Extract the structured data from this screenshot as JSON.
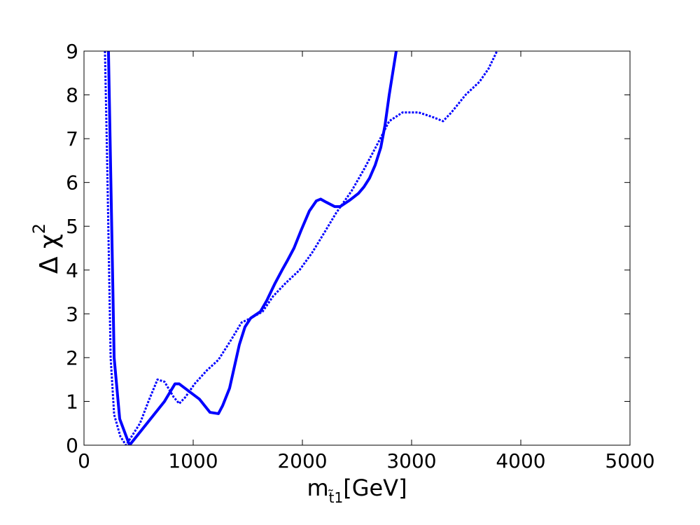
{
  "chart_data": {
    "type": "line",
    "xlabel": [
      "m",
      "t̃1",
      "[GeV]"
    ],
    "ylabel": [
      "Δ χ",
      "2"
    ],
    "xlim": [
      0,
      5000
    ],
    "xticks": [
      0,
      1000,
      2000,
      3000,
      4000,
      5000
    ],
    "ylim": [
      0,
      9
    ],
    "yticks": [
      0,
      1,
      2,
      3,
      4,
      5,
      6,
      7,
      8,
      9
    ],
    "series": [
      {
        "color": "#0000ff",
        "linestyle": "solid",
        "x": [
          224,
          276,
          327,
          417,
          577,
          737,
          833,
          872,
          1058,
          1154,
          1231,
          1269,
          1333,
          1423,
          1474,
          1526,
          1615,
          1673,
          1750,
          1814,
          1859,
          1923,
          1987,
          2064,
          2128,
          2167,
          2218,
          2295,
          2346,
          2436,
          2513,
          2564,
          2615,
          2667,
          2718,
          2756,
          2795,
          2859
        ],
        "values": [
          9,
          2,
          0.6,
          0,
          0.5,
          1.0,
          1.4,
          1.4,
          1.05,
          0.75,
          0.72,
          0.9,
          1.3,
          2.3,
          2.7,
          2.9,
          3.05,
          3.3,
          3.7,
          4.0,
          4.2,
          4.5,
          4.9,
          5.35,
          5.58,
          5.62,
          5.55,
          5.45,
          5.45,
          5.6,
          5.75,
          5.9,
          6.1,
          6.4,
          6.8,
          7.3,
          8.0,
          9.0
        ]
      },
      {
        "color": "#0000ff",
        "linestyle": "dotted",
        "x": [
          192,
          212,
          244,
          276,
          333,
          385,
          513,
          590,
          673,
          737,
          821,
          872,
          929,
          1013,
          1122,
          1231,
          1346,
          1442,
          1526,
          1635,
          1731,
          1846,
          1974,
          2090,
          2212,
          2308,
          2449,
          2564,
          2692,
          2795,
          2917,
          3064,
          3186,
          3288,
          3365,
          3494,
          3622,
          3705,
          3782
        ],
        "values": [
          9,
          6.5,
          2,
          0.7,
          0.2,
          0,
          0.5,
          1.0,
          1.5,
          1.45,
          1.1,
          0.95,
          1.1,
          1.4,
          1.7,
          1.95,
          2.4,
          2.8,
          2.9,
          3.05,
          3.4,
          3.7,
          4.0,
          4.4,
          4.9,
          5.3,
          5.8,
          6.3,
          6.9,
          7.4,
          7.6,
          7.6,
          7.5,
          7.4,
          7.6,
          8.0,
          8.3,
          8.6,
          9.0
        ]
      }
    ]
  }
}
